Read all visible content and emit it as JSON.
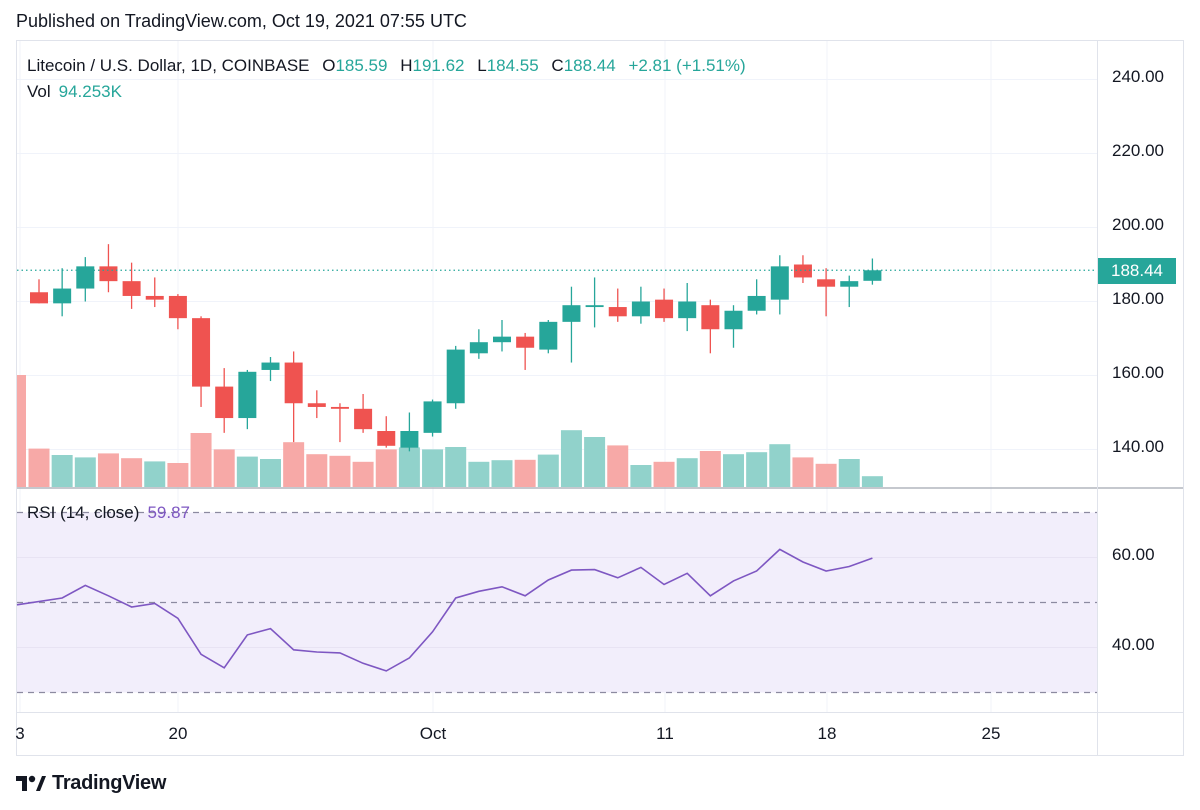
{
  "header": {
    "published": "Published on TradingView.com, Oct 19, 2021 07:55 UTC"
  },
  "legend": {
    "symbol": "Litecoin / U.S. Dollar, 1D, COINBASE",
    "o_label": "O",
    "o_value": "185.59",
    "h_label": "H",
    "h_value": "191.62",
    "l_label": "L",
    "l_value": "184.55",
    "c_label": "C",
    "c_value": "188.44",
    "change": "+2.81 (+1.51%)",
    "vol_label": "Vol",
    "vol_value": "94.253K",
    "rsi_label": "RSI (14, close)",
    "rsi_value": "59.87"
  },
  "price_axis": {
    "ticks": [
      "240.00",
      "220.00",
      "200.00",
      "180.00",
      "160.00",
      "140.00"
    ],
    "last_price": "188.44"
  },
  "rsi_axis": {
    "ticks": [
      "60.00",
      "40.00"
    ]
  },
  "time_axis": {
    "ticks": [
      "3",
      "20",
      "Oct",
      "11",
      "18",
      "25"
    ]
  },
  "brand": {
    "name": "TradingView"
  },
  "colors": {
    "up": "#26a69a",
    "down": "#ef5350",
    "rsi_line": "#7e57c2",
    "rsi_band": "#f2eefb"
  },
  "chart_data": [
    {
      "type": "candlestick",
      "title": "Litecoin / U.S. Dollar, 1D, COINBASE",
      "ylim": [
        130,
        250
      ],
      "candles": [
        {
          "o": 182.5,
          "h": 186.0,
          "l": 179.5,
          "c": 179.5
        },
        {
          "o": 179.5,
          "h": 189.0,
          "l": 176.0,
          "c": 183.5
        },
        {
          "o": 183.5,
          "h": 192.0,
          "l": 180.0,
          "c": 189.5
        },
        {
          "o": 189.5,
          "h": 195.5,
          "l": 182.5,
          "c": 185.5
        },
        {
          "o": 185.5,
          "h": 190.5,
          "l": 178.0,
          "c": 181.5
        },
        {
          "o": 181.5,
          "h": 186.5,
          "l": 178.5,
          "c": 180.5
        },
        {
          "o": 181.5,
          "h": 182.0,
          "l": 172.5,
          "c": 175.5
        },
        {
          "o": 175.5,
          "h": 176.0,
          "l": 151.5,
          "c": 157.0
        },
        {
          "o": 157.0,
          "h": 162.0,
          "l": 144.5,
          "c": 148.5
        },
        {
          "o": 148.5,
          "h": 161.5,
          "l": 145.5,
          "c": 161.0
        },
        {
          "o": 161.5,
          "h": 165.0,
          "l": 158.5,
          "c": 163.5
        },
        {
          "o": 163.5,
          "h": 166.5,
          "l": 142.0,
          "c": 152.5
        },
        {
          "o": 152.5,
          "h": 156.0,
          "l": 148.5,
          "c": 151.5
        },
        {
          "o": 151.5,
          "h": 152.5,
          "l": 142.0,
          "c": 151.0
        },
        {
          "o": 151.0,
          "h": 155.0,
          "l": 144.5,
          "c": 145.5
        },
        {
          "o": 145.0,
          "h": 149.0,
          "l": 140.5,
          "c": 141.0
        },
        {
          "o": 140.5,
          "h": 150.0,
          "l": 139.5,
          "c": 145.0
        },
        {
          "o": 144.5,
          "h": 153.5,
          "l": 143.5,
          "c": 153.0
        },
        {
          "o": 152.5,
          "h": 168.0,
          "l": 151.0,
          "c": 167.0
        },
        {
          "o": 166.0,
          "h": 172.5,
          "l": 164.5,
          "c": 169.0
        },
        {
          "o": 169.0,
          "h": 175.0,
          "l": 166.5,
          "c": 170.5
        },
        {
          "o": 170.5,
          "h": 171.5,
          "l": 161.5,
          "c": 167.5
        },
        {
          "o": 167.0,
          "h": 175.0,
          "l": 166.0,
          "c": 174.5
        },
        {
          "o": 174.5,
          "h": 184.0,
          "l": 163.5,
          "c": 179.0
        },
        {
          "o": 178.5,
          "h": 186.5,
          "l": 173.0,
          "c": 179.0
        },
        {
          "o": 178.5,
          "h": 183.5,
          "l": 174.5,
          "c": 176.0
        },
        {
          "o": 176.0,
          "h": 184.0,
          "l": 174.0,
          "c": 180.0
        },
        {
          "o": 180.5,
          "h": 183.5,
          "l": 174.5,
          "c": 175.5
        },
        {
          "o": 175.5,
          "h": 185.0,
          "l": 172.0,
          "c": 180.0
        },
        {
          "o": 179.0,
          "h": 180.5,
          "l": 166.0,
          "c": 172.5
        },
        {
          "o": 172.5,
          "h": 179.0,
          "l": 167.5,
          "c": 177.5
        },
        {
          "o": 177.5,
          "h": 186.0,
          "l": 176.5,
          "c": 181.5
        },
        {
          "o": 180.5,
          "h": 192.5,
          "l": 176.5,
          "c": 189.5
        },
        {
          "o": 190.0,
          "h": 192.5,
          "l": 185.0,
          "c": 186.5
        },
        {
          "o": 186.0,
          "h": 189.0,
          "l": 176.0,
          "c": 184.0
        },
        {
          "o": 184.0,
          "h": 187.0,
          "l": 178.5,
          "c": 185.5
        },
        {
          "o": 185.59,
          "h": 191.62,
          "l": 184.55,
          "c": 188.44
        }
      ]
    },
    {
      "type": "bar",
      "title": "Vol",
      "series": [
        {
          "values": [
            96,
            80,
            74,
            84,
            72,
            64,
            60,
            135,
            94,
            76,
            70,
            112,
            82,
            78,
            63,
            94,
            99,
            94,
            100,
            63,
            67,
            68,
            81,
            142,
            125,
            104,
            55,
            63,
            72,
            90,
            82,
            87,
            107,
            74,
            58,
            70,
            27
          ]
        }
      ],
      "directions": [
        "down",
        "up",
        "up",
        "down",
        "down",
        "up",
        "down",
        "down",
        "down",
        "up",
        "up",
        "down",
        "down",
        "down",
        "down",
        "down",
        "up",
        "up",
        "up",
        "up",
        "up",
        "down",
        "up",
        "up",
        "up",
        "down",
        "up",
        "down",
        "up",
        "down",
        "up",
        "up",
        "up",
        "down",
        "down",
        "up",
        "up"
      ],
      "extra_left_bar": {
        "value": 335,
        "direction": "down"
      }
    },
    {
      "type": "line",
      "title": "RSI (14, close)",
      "ylim": [
        25,
        75
      ],
      "guides": [
        70,
        50,
        30
      ],
      "series": [
        {
          "values": [
            49.5,
            51.0,
            53.8,
            51.5,
            49.0,
            49.8,
            46.5,
            38.5,
            35.5,
            42.8,
            44.2,
            39.5,
            39.0,
            38.8,
            36.5,
            34.8,
            37.7,
            43.5,
            51.0,
            52.5,
            53.5,
            51.5,
            55.0,
            57.2,
            57.3,
            55.5,
            57.8,
            54.0,
            56.5,
            51.5,
            54.8,
            57.0,
            61.8,
            59.0,
            57.0,
            58.0,
            59.87
          ]
        }
      ]
    }
  ]
}
